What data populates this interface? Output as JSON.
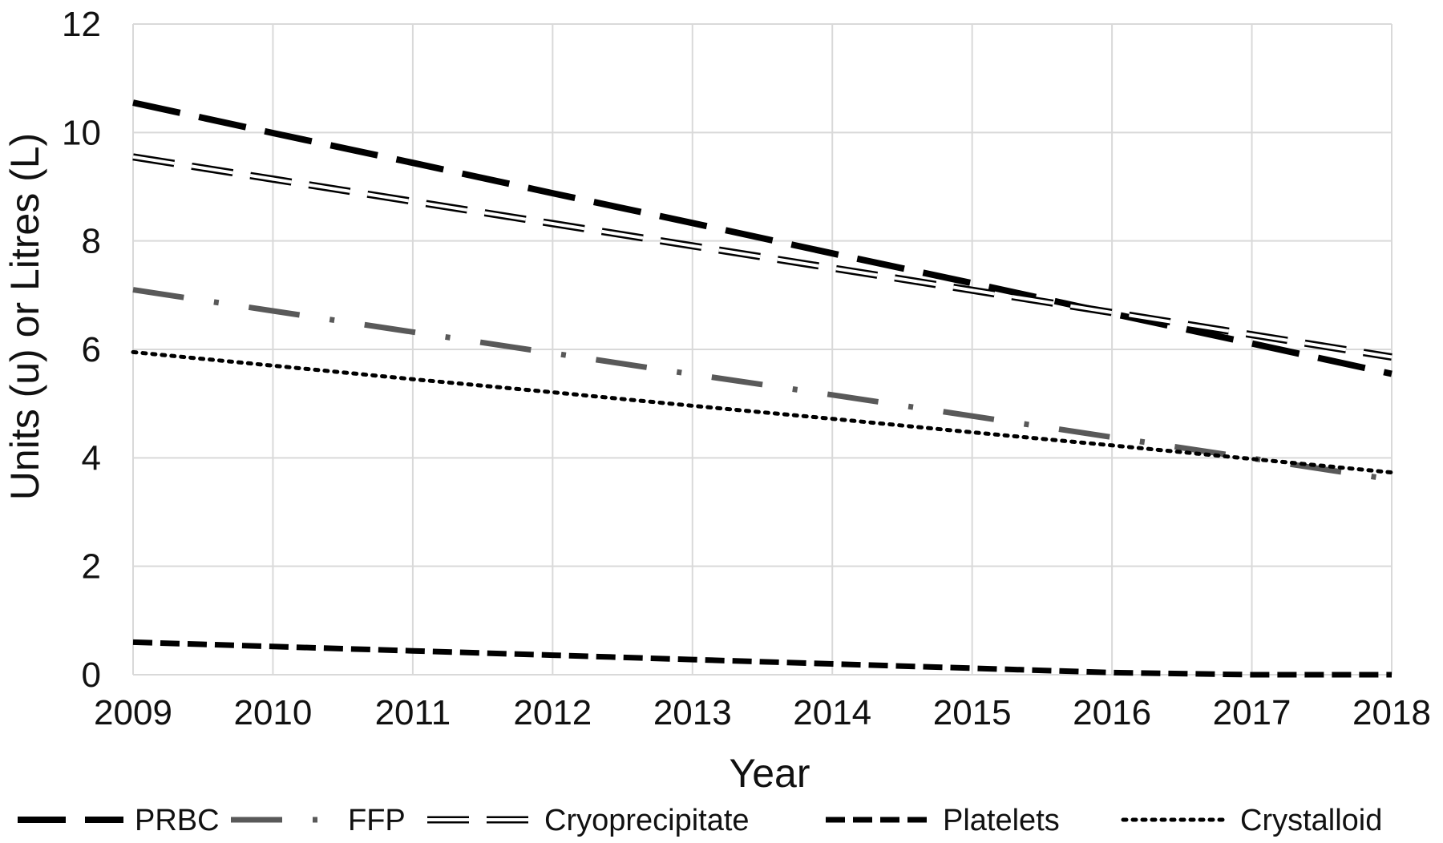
{
  "chart_data": {
    "type": "line",
    "title": "",
    "xlabel": "Year",
    "ylabel": "Units (u) or Litres (L)",
    "x": [
      2009,
      2010,
      2011,
      2012,
      2013,
      2014,
      2015,
      2016,
      2017,
      2018
    ],
    "xlim": [
      2009,
      2018
    ],
    "ylim": [
      0,
      12
    ],
    "x_ticks": [
      "2009",
      "2010",
      "2011",
      "2012",
      "2013",
      "2014",
      "2015",
      "2016",
      "2017",
      "2018"
    ],
    "y_ticks": [
      "0",
      "2",
      "4",
      "6",
      "8",
      "10",
      "12"
    ],
    "grid": true,
    "legend_position": "bottom",
    "series": [
      {
        "name": "PRBC",
        "style": "long-dash",
        "color": "#000000",
        "values": [
          10.55,
          9.99,
          9.44,
          8.88,
          8.33,
          7.77,
          7.22,
          6.66,
          6.11,
          5.55
        ]
      },
      {
        "name": "FFP",
        "style": "dash-dot",
        "color": "#595959",
        "values": [
          7.1,
          6.71,
          6.32,
          5.93,
          5.54,
          5.16,
          4.77,
          4.38,
          3.99,
          3.6
        ]
      },
      {
        "name": "Cryoprecipitate",
        "style": "double-dash",
        "color": "#000000",
        "values": [
          9.55,
          9.14,
          8.73,
          8.32,
          7.91,
          7.5,
          7.09,
          6.68,
          6.27,
          5.86
        ]
      },
      {
        "name": "Platelets",
        "style": "short-dash",
        "color": "#000000",
        "values": [
          0.6,
          0.52,
          0.44,
          0.36,
          0.28,
          0.2,
          0.12,
          0.04,
          -0.02,
          -0.05
        ]
      },
      {
        "name": "Crystalloid",
        "style": "dotted",
        "color": "#000000",
        "values": [
          5.95,
          5.7,
          5.45,
          5.21,
          4.96,
          4.72,
          4.47,
          4.23,
          3.98,
          3.73
        ]
      }
    ]
  }
}
